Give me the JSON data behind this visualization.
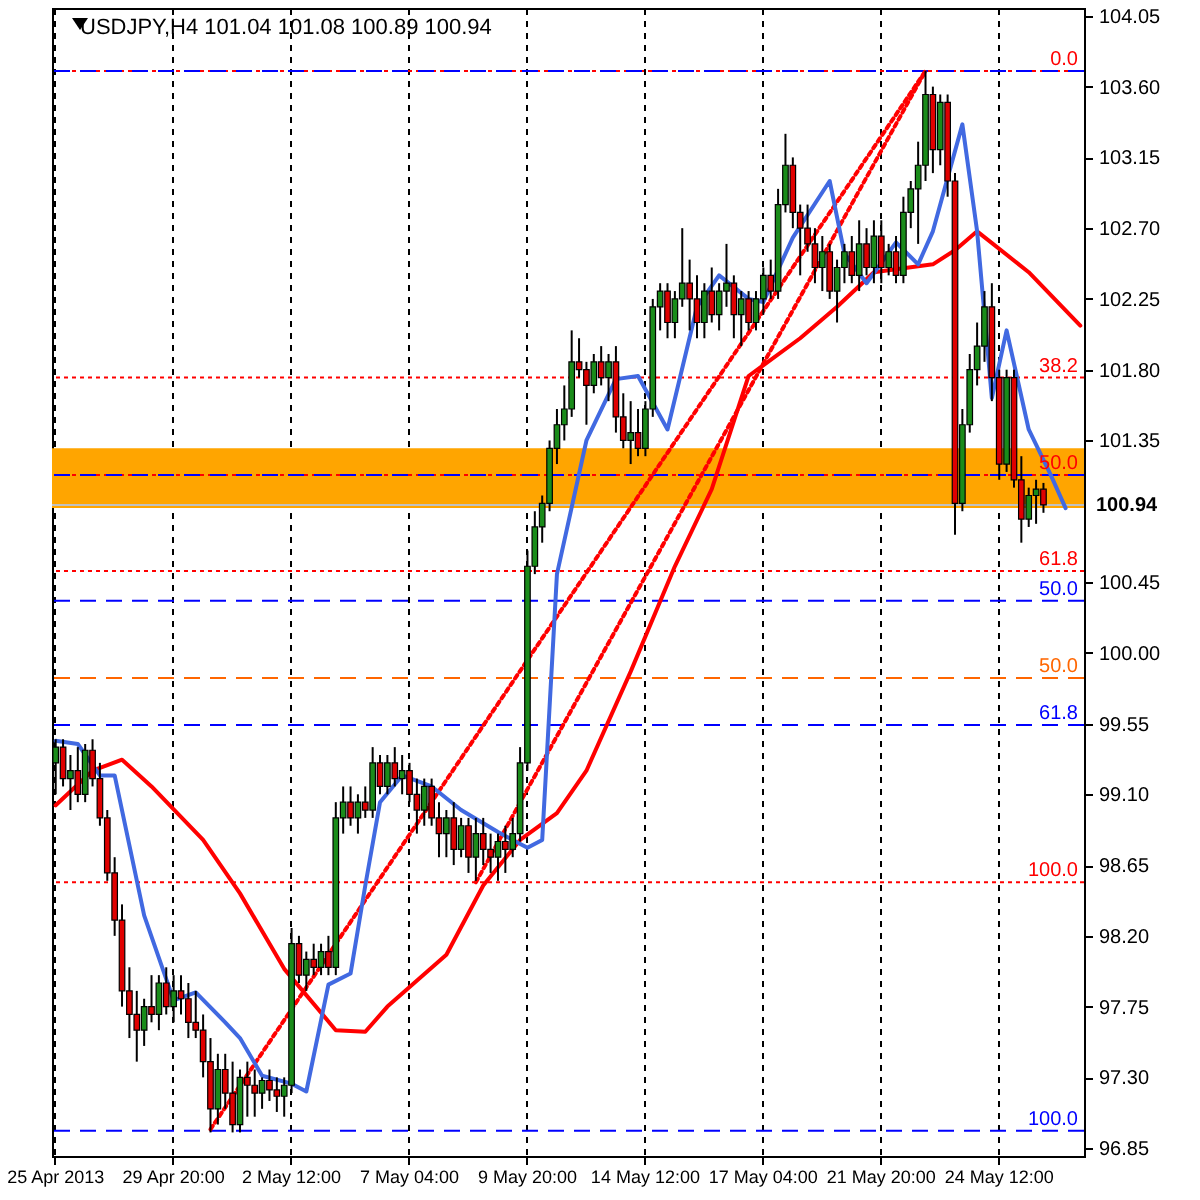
{
  "chart_data": {
    "type": "candlestick",
    "title": "USDJPY,H4  101.04 101.08 100.89 100.94",
    "categories": [
      "25 Apr 2013",
      null,
      null,
      null,
      null,
      null,
      null,
      null,
      null,
      null,
      null,
      null,
      null,
      null,
      null,
      null,
      "29 Apr 20:00",
      null,
      null,
      null,
      null,
      null,
      null,
      null,
      null,
      null,
      null,
      null,
      null,
      null,
      null,
      null,
      "2 May 12:00",
      null,
      null,
      null,
      null,
      null,
      null,
      null,
      null,
      null,
      null,
      null,
      null,
      null,
      null,
      null,
      "7 May 04:00",
      null,
      null,
      null,
      null,
      null,
      null,
      null,
      null,
      null,
      null,
      null,
      null,
      null,
      null,
      null,
      "9 May 20:00",
      null,
      null,
      null,
      null,
      null,
      null,
      null,
      null,
      null,
      null,
      null,
      null,
      null,
      null,
      null,
      "14 May 12:00",
      null,
      null,
      null,
      null,
      null,
      null,
      null,
      null,
      null,
      null,
      null,
      null,
      null,
      null,
      null,
      "17 May 04:00",
      null,
      null,
      null,
      null,
      null,
      null,
      null,
      null,
      null,
      null,
      null,
      null,
      null,
      null,
      null,
      "21 May 20:00",
      null,
      null,
      null,
      null,
      null,
      null,
      null,
      null,
      null,
      null,
      null,
      null,
      null,
      null,
      null,
      "24 May 12:00",
      null,
      null,
      null,
      null,
      null,
      null,
      null,
      null,
      null,
      null,
      null
    ],
    "ohlc": [
      [
        99.3,
        99.45,
        99.1,
        99.4
      ],
      [
        99.4,
        99.45,
        99.15,
        99.2
      ],
      [
        99.2,
        99.35,
        99.0,
        99.25
      ],
      [
        99.25,
        99.4,
        99.05,
        99.1
      ],
      [
        99.1,
        99.42,
        99.05,
        99.38
      ],
      [
        99.38,
        99.45,
        99.15,
        99.2
      ],
      [
        99.2,
        99.3,
        98.9,
        98.95
      ],
      [
        98.95,
        99.0,
        98.55,
        98.6
      ],
      [
        98.6,
        98.7,
        98.2,
        98.3
      ],
      [
        98.3,
        98.4,
        97.75,
        97.85
      ],
      [
        97.85,
        98.0,
        97.55,
        97.7
      ],
      [
        97.7,
        97.85,
        97.4,
        97.6
      ],
      [
        97.6,
        97.8,
        97.5,
        97.75
      ],
      [
        97.75,
        97.95,
        97.65,
        97.7
      ],
      [
        97.7,
        97.95,
        97.6,
        97.9
      ],
      [
        97.9,
        98.0,
        97.7,
        97.75
      ],
      [
        97.75,
        97.95,
        97.65,
        97.85
      ],
      [
        97.85,
        97.95,
        97.7,
        97.8
      ],
      [
        97.8,
        97.9,
        97.55,
        97.65
      ],
      [
        97.65,
        97.85,
        97.55,
        97.6
      ],
      [
        97.6,
        97.7,
        97.3,
        97.4
      ],
      [
        97.4,
        97.55,
        96.95,
        97.1
      ],
      [
        97.1,
        97.45,
        97.0,
        97.35
      ],
      [
        97.35,
        97.45,
        97.1,
        97.2
      ],
      [
        97.2,
        97.4,
        96.95,
        97.0
      ],
      [
        97.0,
        97.35,
        96.95,
        97.3
      ],
      [
        97.3,
        97.4,
        97.05,
        97.25
      ],
      [
        97.25,
        97.35,
        97.05,
        97.2
      ],
      [
        97.2,
        97.3,
        97.1,
        97.28
      ],
      [
        97.28,
        97.35,
        97.15,
        97.22
      ],
      [
        97.22,
        97.3,
        97.08,
        97.18
      ],
      [
        97.18,
        97.3,
        97.05,
        97.25
      ],
      [
        97.25,
        98.25,
        97.2,
        98.15
      ],
      [
        98.15,
        98.2,
        97.9,
        97.95
      ],
      [
        97.95,
        98.1,
        97.85,
        98.05
      ],
      [
        98.05,
        98.15,
        97.95,
        98.0
      ],
      [
        98.0,
        98.15,
        97.95,
        98.1
      ],
      [
        98.1,
        98.2,
        97.95,
        98.0
      ],
      [
        98.0,
        99.05,
        97.95,
        98.95
      ],
      [
        98.95,
        99.15,
        98.85,
        99.05
      ],
      [
        99.05,
        99.15,
        98.9,
        98.95
      ],
      [
        98.95,
        99.1,
        98.85,
        99.05
      ],
      [
        99.05,
        99.15,
        98.95,
        99.0
      ],
      [
        99.0,
        99.4,
        98.95,
        99.3
      ],
      [
        99.3,
        99.35,
        99.1,
        99.15
      ],
      [
        99.15,
        99.35,
        99.1,
        99.3
      ],
      [
        99.3,
        99.4,
        99.15,
        99.2
      ],
      [
        99.2,
        99.35,
        99.1,
        99.25
      ],
      [
        99.25,
        99.3,
        99.05,
        99.1
      ],
      [
        99.1,
        99.2,
        98.85,
        99.0
      ],
      [
        99.0,
        99.2,
        98.9,
        99.15
      ],
      [
        99.15,
        99.2,
        98.9,
        98.95
      ],
      [
        98.95,
        99.05,
        98.7,
        98.85
      ],
      [
        98.85,
        99.0,
        98.7,
        98.95
      ],
      [
        98.95,
        99.05,
        98.65,
        98.75
      ],
      [
        98.75,
        98.95,
        98.7,
        98.9
      ],
      [
        98.9,
        98.95,
        98.6,
        98.7
      ],
      [
        98.7,
        98.95,
        98.55,
        98.85
      ],
      [
        98.85,
        98.95,
        98.65,
        98.75
      ],
      [
        98.75,
        98.85,
        98.6,
        98.7
      ],
      [
        98.7,
        98.85,
        98.55,
        98.8
      ],
      [
        98.8,
        98.9,
        98.6,
        98.75
      ],
      [
        98.75,
        98.95,
        98.7,
        98.85
      ],
      [
        98.85,
        99.4,
        98.8,
        99.3
      ],
      [
        99.3,
        100.65,
        99.25,
        100.55
      ],
      [
        100.55,
        100.9,
        100.5,
        100.8
      ],
      [
        100.8,
        101.0,
        100.7,
        100.95
      ],
      [
        100.95,
        101.35,
        100.9,
        101.3
      ],
      [
        101.3,
        101.55,
        101.2,
        101.45
      ],
      [
        101.45,
        101.7,
        101.35,
        101.55
      ],
      [
        101.55,
        102.05,
        101.5,
        101.85
      ],
      [
        101.85,
        102.0,
        101.75,
        101.8
      ],
      [
        101.8,
        101.85,
        101.45,
        101.7
      ],
      [
        101.7,
        101.9,
        101.65,
        101.85
      ],
      [
        101.85,
        101.95,
        101.7,
        101.75
      ],
      [
        101.75,
        101.9,
        101.6,
        101.85
      ],
      [
        101.85,
        101.95,
        101.4,
        101.5
      ],
      [
        101.5,
        101.65,
        101.3,
        101.35
      ],
      [
        101.35,
        101.6,
        101.2,
        101.4
      ],
      [
        101.4,
        101.55,
        101.25,
        101.3
      ],
      [
        101.3,
        101.6,
        101.25,
        101.55
      ],
      [
        101.55,
        102.25,
        101.5,
        102.2
      ],
      [
        102.2,
        102.35,
        102.05,
        102.3
      ],
      [
        102.3,
        102.35,
        102.0,
        102.1
      ],
      [
        102.1,
        102.3,
        102.0,
        102.25
      ],
      [
        102.25,
        102.7,
        102.2,
        102.35
      ],
      [
        102.35,
        102.5,
        102.05,
        102.25
      ],
      [
        102.25,
        102.4,
        102.0,
        102.1
      ],
      [
        102.1,
        102.35,
        102.0,
        102.3
      ],
      [
        102.3,
        102.45,
        102.1,
        102.15
      ],
      [
        102.15,
        102.35,
        102.05,
        102.3
      ],
      [
        102.3,
        102.6,
        102.2,
        102.35
      ],
      [
        102.35,
        102.4,
        102.0,
        102.15
      ],
      [
        102.15,
        102.3,
        101.95,
        102.25
      ],
      [
        102.25,
        102.3,
        102.05,
        102.1
      ],
      [
        102.1,
        102.3,
        102.05,
        102.25
      ],
      [
        102.25,
        102.45,
        102.15,
        102.4
      ],
      [
        102.4,
        102.5,
        102.25,
        102.3
      ],
      [
        102.3,
        102.95,
        102.25,
        102.85
      ],
      [
        102.85,
        103.3,
        102.8,
        103.1
      ],
      [
        103.1,
        103.15,
        102.7,
        102.8
      ],
      [
        102.8,
        102.85,
        102.4,
        102.7
      ],
      [
        102.7,
        102.85,
        102.55,
        102.6
      ],
      [
        102.6,
        102.7,
        102.35,
        102.45
      ],
      [
        102.45,
        102.65,
        102.3,
        102.55
      ],
      [
        102.55,
        102.6,
        102.25,
        102.3
      ],
      [
        102.3,
        102.5,
        102.1,
        102.45
      ],
      [
        102.45,
        102.6,
        102.35,
        102.55
      ],
      [
        102.55,
        102.65,
        102.35,
        102.4
      ],
      [
        102.4,
        102.75,
        102.3,
        102.6
      ],
      [
        102.6,
        102.7,
        102.4,
        102.45
      ],
      [
        102.45,
        102.75,
        102.35,
        102.65
      ],
      [
        102.65,
        102.75,
        102.35,
        102.45
      ],
      [
        102.45,
        102.6,
        102.4,
        102.55
      ],
      [
        102.55,
        102.65,
        102.35,
        102.4
      ],
      [
        102.4,
        102.9,
        102.35,
        102.8
      ],
      [
        102.8,
        103.0,
        102.7,
        102.95
      ],
      [
        102.95,
        103.25,
        102.6,
        103.1
      ],
      [
        103.1,
        103.7,
        103.0,
        103.55
      ],
      [
        103.55,
        103.6,
        103.05,
        103.2
      ],
      [
        103.2,
        103.55,
        103.1,
        103.5
      ],
      [
        103.5,
        103.55,
        102.9,
        103.0
      ],
      [
        103.0,
        103.05,
        100.75,
        100.95
      ],
      [
        100.95,
        101.55,
        100.9,
        101.45
      ],
      [
        101.45,
        101.9,
        101.4,
        101.8
      ],
      [
        101.8,
        102.1,
        101.7,
        101.95
      ],
      [
        101.95,
        102.3,
        101.85,
        102.2
      ],
      [
        102.2,
        102.35,
        101.6,
        101.75
      ],
      [
        101.75,
        101.8,
        101.1,
        101.2
      ],
      [
        101.2,
        101.8,
        101.15,
        101.75
      ],
      [
        101.75,
        101.8,
        101.05,
        101.1
      ],
      [
        101.1,
        101.25,
        100.7,
        100.85
      ],
      [
        100.85,
        101.05,
        100.8,
        101.0
      ],
      [
        101.0,
        101.1,
        100.82,
        101.04
      ],
      [
        101.04,
        101.08,
        100.89,
        100.94
      ],
      null,
      null,
      null,
      null,
      null
    ],
    "colors": [
      "#1a8c1a",
      "#e00000",
      "#1a8c1a",
      "#e00000",
      "#1a8c1a",
      "#e00000",
      "#e00000",
      "#e00000",
      "#e00000",
      "#e00000",
      "#e00000",
      "#e00000",
      "#1a8c1a",
      "#e00000",
      "#1a8c1a",
      "#e00000",
      "#1a8c1a",
      "#e00000",
      "#e00000",
      "#e00000",
      "#e00000",
      "#e00000",
      "#1a8c1a",
      "#e00000",
      "#e00000",
      "#1a8c1a",
      "#e00000",
      "#e00000",
      "#1a8c1a",
      "#e00000",
      "#e00000",
      "#1a8c1a",
      "#1a8c1a",
      "#e00000",
      "#1a8c1a",
      "#e00000",
      "#1a8c1a",
      "#e00000",
      "#1a8c1a",
      "#1a8c1a",
      "#e00000",
      "#1a8c1a",
      "#e00000",
      "#1a8c1a",
      "#e00000",
      "#1a8c1a",
      "#e00000",
      "#1a8c1a",
      "#e00000",
      "#e00000",
      "#1a8c1a",
      "#e00000",
      "#e00000",
      "#1a8c1a",
      "#e00000",
      "#1a8c1a",
      "#e00000",
      "#1a8c1a",
      "#e00000",
      "#e00000",
      "#1a8c1a",
      "#e00000",
      "#1a8c1a",
      "#1a8c1a",
      "#1a8c1a",
      "#1a8c1a",
      "#1a8c1a",
      "#1a8c1a",
      "#1a8c1a",
      "#1a8c1a",
      "#1a8c1a",
      "#e00000",
      "#e00000",
      "#1a8c1a",
      "#e00000",
      "#1a8c1a",
      "#e00000",
      "#e00000",
      "#1a8c1a",
      "#e00000",
      "#1a8c1a",
      "#1a8c1a",
      "#1a8c1a",
      "#e00000",
      "#1a8c1a",
      "#1a8c1a",
      "#e00000",
      "#e00000",
      "#1a8c1a",
      "#e00000",
      "#1a8c1a",
      "#1a8c1a",
      "#e00000",
      "#1a8c1a",
      "#e00000",
      "#1a8c1a",
      "#1a8c1a",
      "#e00000",
      "#1a8c1a",
      "#1a8c1a",
      "#e00000",
      "#e00000",
      "#e00000",
      "#e00000",
      "#1a8c1a",
      "#e00000",
      "#1a8c1a",
      "#1a8c1a",
      "#e00000",
      "#1a8c1a",
      "#e00000",
      "#1a8c1a",
      "#e00000",
      "#1a8c1a",
      "#e00000",
      "#1a8c1a",
      "#1a8c1a",
      "#1a8c1a",
      "#1a8c1a",
      "#e00000",
      "#1a8c1a",
      "#e00000",
      "#e00000",
      "#1a8c1a",
      "#1a8c1a",
      "#1a8c1a",
      "#1a8c1a",
      "#e00000",
      "#e00000",
      "#1a8c1a",
      "#e00000",
      "#e00000",
      "#1a8c1a",
      "#1a8c1a",
      "#e00000",
      null,
      null,
      null,
      null,
      null
    ],
    "series": [
      {
        "type": "line",
        "color": "#ff0000",
        "line_style": "dotted",
        "values": [
          null,
          null,
          null,
          null,
          null,
          null,
          null,
          null,
          null,
          null,
          null,
          null,
          null,
          null,
          null,
          null,
          null,
          null,
          null,
          null,
          null,
          96.97,
          null,
          null,
          null,
          null,
          null,
          null,
          null,
          null,
          null,
          null,
          null,
          null,
          null,
          null,
          null,
          null,
          null,
          null,
          null,
          null,
          null,
          null,
          null,
          null,
          null,
          null,
          null,
          null,
          null,
          null,
          null,
          null,
          null,
          null,
          null,
          null,
          null,
          null,
          null,
          null,
          null,
          null,
          null,
          null,
          null,
          null,
          null,
          null,
          null,
          null,
          null,
          null,
          null,
          null,
          null,
          null,
          null,
          null,
          null,
          null,
          null,
          null,
          null,
          null,
          null,
          null,
          null,
          null,
          null,
          null,
          null,
          null,
          null,
          null,
          null,
          null,
          null,
          null,
          null,
          null,
          null,
          null,
          null,
          null,
          null,
          null,
          null,
          null,
          null,
          null,
          null,
          null,
          null,
          null,
          null,
          null,
          103.7,
          null,
          null,
          null,
          null,
          null,
          null,
          null,
          null,
          null,
          null,
          null,
          null,
          null,
          null,
          null,
          null,
          null,
          null,
          null,
          null,
          null
        ]
      },
      {
        "type": "line",
        "color": "#ff0000",
        "line_style": "dotted",
        "values": [
          null,
          null,
          null,
          null,
          null,
          null,
          null,
          null,
          null,
          null,
          null,
          null,
          null,
          null,
          null,
          null,
          null,
          null,
          null,
          null,
          null,
          null,
          null,
          null,
          null,
          null,
          null,
          null,
          null,
          null,
          null,
          null,
          null,
          null,
          null,
          null,
          null,
          null,
          null,
          null,
          null,
          null,
          null,
          null,
          null,
          null,
          null,
          null,
          null,
          null,
          null,
          null,
          null,
          null,
          null,
          null,
          null,
          98.54,
          null,
          null,
          null,
          null,
          null,
          null,
          null,
          null,
          null,
          null,
          null,
          null,
          null,
          null,
          null,
          null,
          null,
          null,
          null,
          null,
          null,
          null,
          null,
          null,
          null,
          null,
          null,
          null,
          null,
          null,
          null,
          null,
          null,
          null,
          null,
          null,
          null,
          null,
          null,
          null,
          null,
          null,
          null,
          null,
          null,
          null,
          null,
          null,
          null,
          null,
          null,
          null,
          null,
          null,
          null,
          null,
          null,
          null,
          null,
          null,
          103.7,
          null,
          null,
          null,
          null,
          null,
          null,
          null,
          null,
          null,
          null,
          null,
          null,
          null,
          null,
          null,
          null,
          null,
          null,
          null,
          null,
          null
        ]
      },
      {
        "type": "line",
        "color": "#ff0000",
        "line_style": "solid",
        "values": [
          99.03,
          null,
          null,
          null,
          null,
          99.25,
          null,
          null,
          null,
          99.32,
          null,
          null,
          null,
          99.15,
          null,
          null,
          null,
          null,
          null,
          null,
          98.81,
          null,
          null,
          null,
          null,
          98.47,
          null,
          null,
          null,
          null,
          null,
          97.99,
          null,
          null,
          null,
          null,
          null,
          null,
          97.6,
          null,
          null,
          null,
          97.59,
          null,
          null,
          97.75,
          null,
          null,
          null,
          null,
          null,
          null,
          null,
          98.08,
          null,
          null,
          null,
          null,
          98.52,
          null,
          null,
          null,
          null,
          98.81,
          null,
          null,
          null,
          null,
          98.98,
          null,
          null,
          null,
          99.25,
          null,
          null,
          null,
          null,
          null,
          99.88,
          null,
          null,
          null,
          null,
          null,
          100.55,
          null,
          null,
          null,
          null,
          101.04,
          null,
          null,
          null,
          null,
          101.76,
          null,
          null,
          null,
          null,
          null,
          null,
          102.0,
          null,
          null,
          null,
          null,
          102.2,
          null,
          null,
          null,
          null,
          102.42,
          null,
          null,
          null,
          null,
          null,
          null,
          null,
          102.47,
          null,
          null,
          102.56,
          null,
          null,
          102.68,
          null,
          null,
          null,
          null,
          null,
          null,
          102.42,
          null,
          null,
          null,
          null,
          null,
          null,
          102.08
        ]
      },
      {
        "type": "line",
        "color": "#4169e1",
        "line_style": "solid",
        "values": [
          99.44,
          null,
          null,
          99.42,
          null,
          null,
          99.22,
          null,
          99.22,
          null,
          null,
          null,
          98.33,
          null,
          null,
          null,
          97.79,
          null,
          null,
          97.84,
          null,
          null,
          null,
          97.65,
          null,
          97.55,
          null,
          null,
          97.31,
          null,
          null,
          null,
          97.26,
          null,
          97.21,
          null,
          null,
          97.89,
          null,
          null,
          97.96,
          null,
          98.52,
          null,
          99.05,
          null,
          null,
          99.22,
          null,
          null,
          null,
          99.15,
          null,
          null,
          null,
          99.0,
          null,
          null,
          null,
          null,
          98.86,
          null,
          null,
          null,
          98.76,
          null,
          98.81,
          null,
          100.5,
          null,
          null,
          null,
          101.35,
          null,
          null,
          null,
          101.74,
          null,
          null,
          101.76,
          null,
          null,
          null,
          101.42,
          null,
          null,
          null,
          102.2,
          null,
          null,
          102.4,
          null,
          null,
          null,
          102.25,
          null,
          102.23,
          null,
          null,
          null,
          102.64,
          null,
          null,
          null,
          null,
          103.0,
          null,
          102.54,
          null,
          null,
          102.35,
          null,
          null,
          null,
          102.61,
          null,
          null,
          102.47,
          null,
          102.68,
          null,
          null,
          null,
          103.36,
          null,
          102.68,
          null,
          101.62,
          null,
          102.05,
          null,
          null,
          101.42,
          null,
          null,
          101.13,
          null,
          100.92,
          null,
          null
        ]
      }
    ],
    "ylim": [
      96.8,
      104.1
    ],
    "yticks": [
      96.85,
      {
        "value": 97.3,
        "label": "97.30"
      },
      97.75,
      {
        "value": 98.2,
        "label": "98.20"
      },
      98.65,
      {
        "value": 99.1,
        "label": "99.10"
      },
      99.55,
      {
        "value": 100,
        "label": "100.00"
      },
      100.45,
      101.35,
      {
        "value": 101.8,
        "label": "101.80"
      },
      102.25,
      {
        "value": 102.7,
        "label": "102.70"
      },
      103.15,
      {
        "value": 103.6,
        "label": "103.60"
      },
      104.05
    ],
    "grid": "x",
    "bands": [
      {
        "axis": "y",
        "from": 100.92,
        "to": 101.3,
        "color": "#ffa500"
      }
    ],
    "ref_lines": [
      {
        "axis": "y",
        "value": 103.7,
        "color": "#ff0000",
        "line_style": "dotted"
      },
      {
        "axis": "y",
        "value": 103.7,
        "color": "#0000ff",
        "line_style": "dashed"
      },
      {
        "axis": "y",
        "value": 101.75,
        "color": "#ff0000",
        "line_style": "dotted"
      },
      {
        "axis": "y",
        "value": 101.13,
        "color": "#ff0000",
        "line_style": "dotted"
      },
      {
        "axis": "y",
        "value": 101.13,
        "color": "#0000ff",
        "line_style": "dashed"
      },
      {
        "axis": "y",
        "value": 100.52,
        "color": "#ff0000",
        "line_style": "dotted"
      },
      {
        "axis": "y",
        "value": 100.33,
        "color": "#0000ff",
        "line_style": "dashed"
      },
      {
        "axis": "y",
        "value": 99.84,
        "color": "#ff6600",
        "line_style": "dashed"
      },
      {
        "axis": "y",
        "value": 99.54,
        "color": "#0000ff",
        "line_style": "dashed"
      },
      {
        "axis": "y",
        "value": 98.54,
        "color": "#ff0000",
        "line_style": "dotted"
      },
      {
        "axis": "y",
        "value": 96.96,
        "color": "#0000ff",
        "line_style": "dashed"
      },
      {
        "axis": "y",
        "value": 100.94,
        "label": "100.94",
        "color": "#c0c0c0",
        "line_style": "solid"
      }
    ],
    "annotations": [
      {
        "text": "0.0",
        "y": 103.7
      },
      {
        "text": "38.2",
        "y": 101.75
      },
      {
        "text": "50.0",
        "y": 101.13
      },
      {
        "text": "61.8",
        "y": 100.52
      },
      {
        "text": "50.0",
        "y": 100.33
      },
      {
        "text": "50.0",
        "y": 99.84
      },
      {
        "text": "61.8",
        "y": 99.54
      },
      {
        "text": "100.0",
        "y": 98.54
      },
      {
        "text": "100.0",
        "y": 96.96
      }
    ]
  }
}
